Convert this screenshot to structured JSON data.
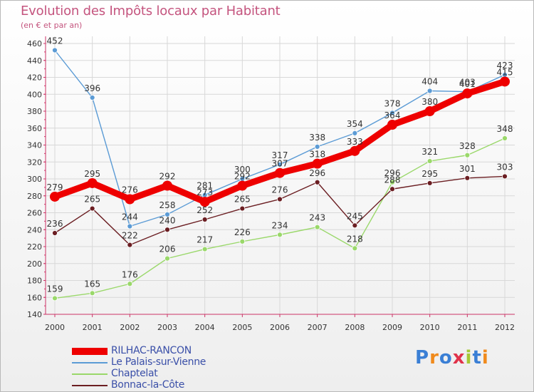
{
  "title": "Evolution des Impôts locaux par Habitant",
  "subtitle": "(en € et par an)",
  "brand": "Proxiti",
  "colors": {
    "title": "#c4547e",
    "axis": "#cc3366"
  },
  "chart_data": {
    "type": "line",
    "title": "Evolution des Impôts locaux par Habitant",
    "ylabel": "(en € et par an)",
    "ylim": [
      140,
      460
    ],
    "yticks": [
      140,
      160,
      180,
      200,
      220,
      240,
      260,
      280,
      300,
      320,
      340,
      360,
      380,
      400,
      420,
      440,
      460
    ],
    "categories": [
      "2000",
      "2001",
      "2002",
      "2003",
      "2004",
      "2005",
      "2006",
      "2007",
      "2008",
      "2009",
      "2010",
      "2011",
      "2012"
    ],
    "series": [
      {
        "name": "Le Palais-sur-Vienne",
        "color": "#5b9bd5",
        "values": [
          452,
          396,
          244,
          258,
          281,
          300,
          317,
          338,
          354,
          378,
          404,
          403,
          423
        ]
      },
      {
        "name": "Chaptelat",
        "color": "#9ad86a",
        "values": [
          159,
          165,
          176,
          206,
          217,
          226,
          234,
          243,
          218,
          296,
          321,
          328,
          348
        ]
      },
      {
        "name": "Bonnac-la-Côte",
        "color": "#6b1e22",
        "values": [
          236,
          265,
          222,
          240,
          252,
          265,
          276,
          296,
          245,
          288,
          295,
          301,
          303
        ]
      },
      {
        "name": "RILHAC-RANCON",
        "color": "#ee0000",
        "values": [
          279,
          295,
          276,
          292,
          273,
          292,
          307,
          318,
          333,
          364,
          380,
          401,
          415
        ]
      }
    ],
    "legend_order": [
      "RILHAC-RANCON",
      "Le Palais-sur-Vienne",
      "Chaptelat",
      "Bonnac-la-Côte"
    ],
    "legend_position": "bottom-left"
  }
}
